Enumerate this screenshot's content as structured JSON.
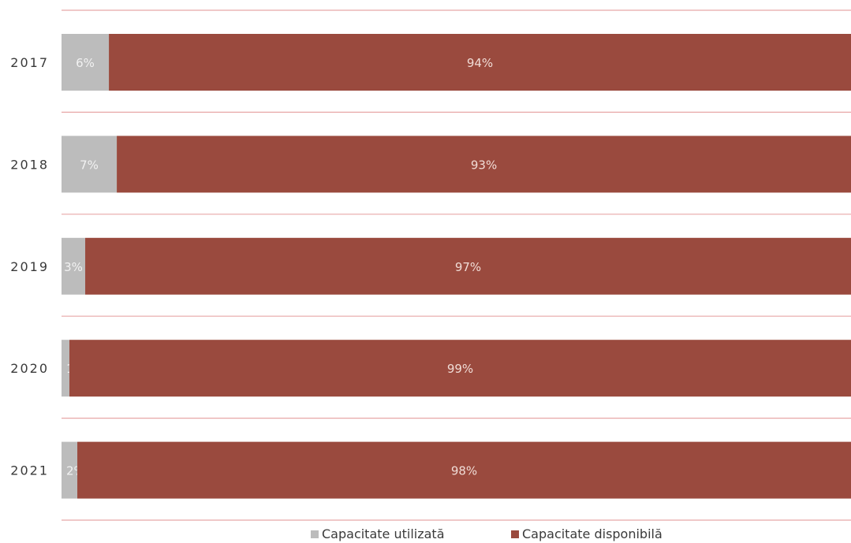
{
  "chart_data": {
    "type": "bar",
    "orientation": "horizontal",
    "stacked": true,
    "percent": true,
    "categories": [
      "2017",
      "2018",
      "2019",
      "2020",
      "2021"
    ],
    "series": [
      {
        "name": "Capacitate utilizată",
        "values": [
          6,
          7,
          3,
          1,
          2
        ],
        "labels": [
          "6%",
          "7%",
          "3%",
          "1%",
          "2%"
        ],
        "color": "#bcbcbc"
      },
      {
        "name": "Capacitate disponibilă",
        "values": [
          94,
          93,
          97,
          99,
          98
        ],
        "labels": [
          "94%",
          "93%",
          "97%",
          "99%",
          "98%"
        ],
        "color": "#9a4a3e"
      }
    ],
    "xlim": [
      0,
      100
    ],
    "grid": true,
    "legend_position": "bottom"
  },
  "colors": {
    "gridline": "#e8a7a7",
    "category_label": "#3a3a3a",
    "used_label": "#f2f2f2",
    "available_label": "#f0dcd6"
  }
}
